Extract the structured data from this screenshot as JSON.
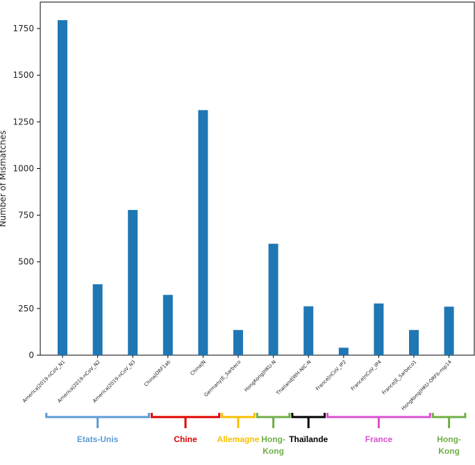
{
  "chart_data": {
    "type": "bar",
    "title": "",
    "xlabel": "",
    "ylabel": "Number of Mismatches",
    "ylim": [
      0,
      1800
    ],
    "yticks": [
      0,
      250,
      500,
      750,
      1000,
      1250,
      1500,
      1750
    ],
    "bar_color": "#1f77b4",
    "categories": [
      "America|2019-nCoV_N1",
      "America|2019-nCoV_N2",
      "America|2019-nCoV_N3",
      "China|ORF1ab",
      "China|N",
      "Germany|E_Sarbeco",
      "HongKong|HKU-N",
      "Thailand|WH-NIC-N",
      "France|nCoV_IP2",
      "France|nCoV_IP4",
      "France|E_Sarbeco1",
      "HongKong|HKU-ORFb-nsp14"
    ],
    "values": [
      1795,
      380,
      778,
      323,
      1313,
      135,
      597,
      262,
      40,
      277,
      135,
      260
    ],
    "groups": [
      {
        "label": "Etats-Unis",
        "color": "#5b9bd5",
        "start": 0,
        "end": 2
      },
      {
        "label": "Chine",
        "color": "#e00000",
        "start": 3,
        "end": 4
      },
      {
        "label": "Allemagne",
        "color": "#f5c000",
        "start": 5,
        "end": 5
      },
      {
        "label": "Hong-\nKong",
        "color": "#70ad47",
        "start": 6,
        "end": 6
      },
      {
        "label": "Thaïlande",
        "color": "#000000",
        "start": 7,
        "end": 7
      },
      {
        "label": "France",
        "color": "#d94fd0",
        "start": 8,
        "end": 10
      },
      {
        "label": "Hong-\nKong",
        "color": "#70ad47",
        "start": 11,
        "end": 11
      }
    ]
  }
}
